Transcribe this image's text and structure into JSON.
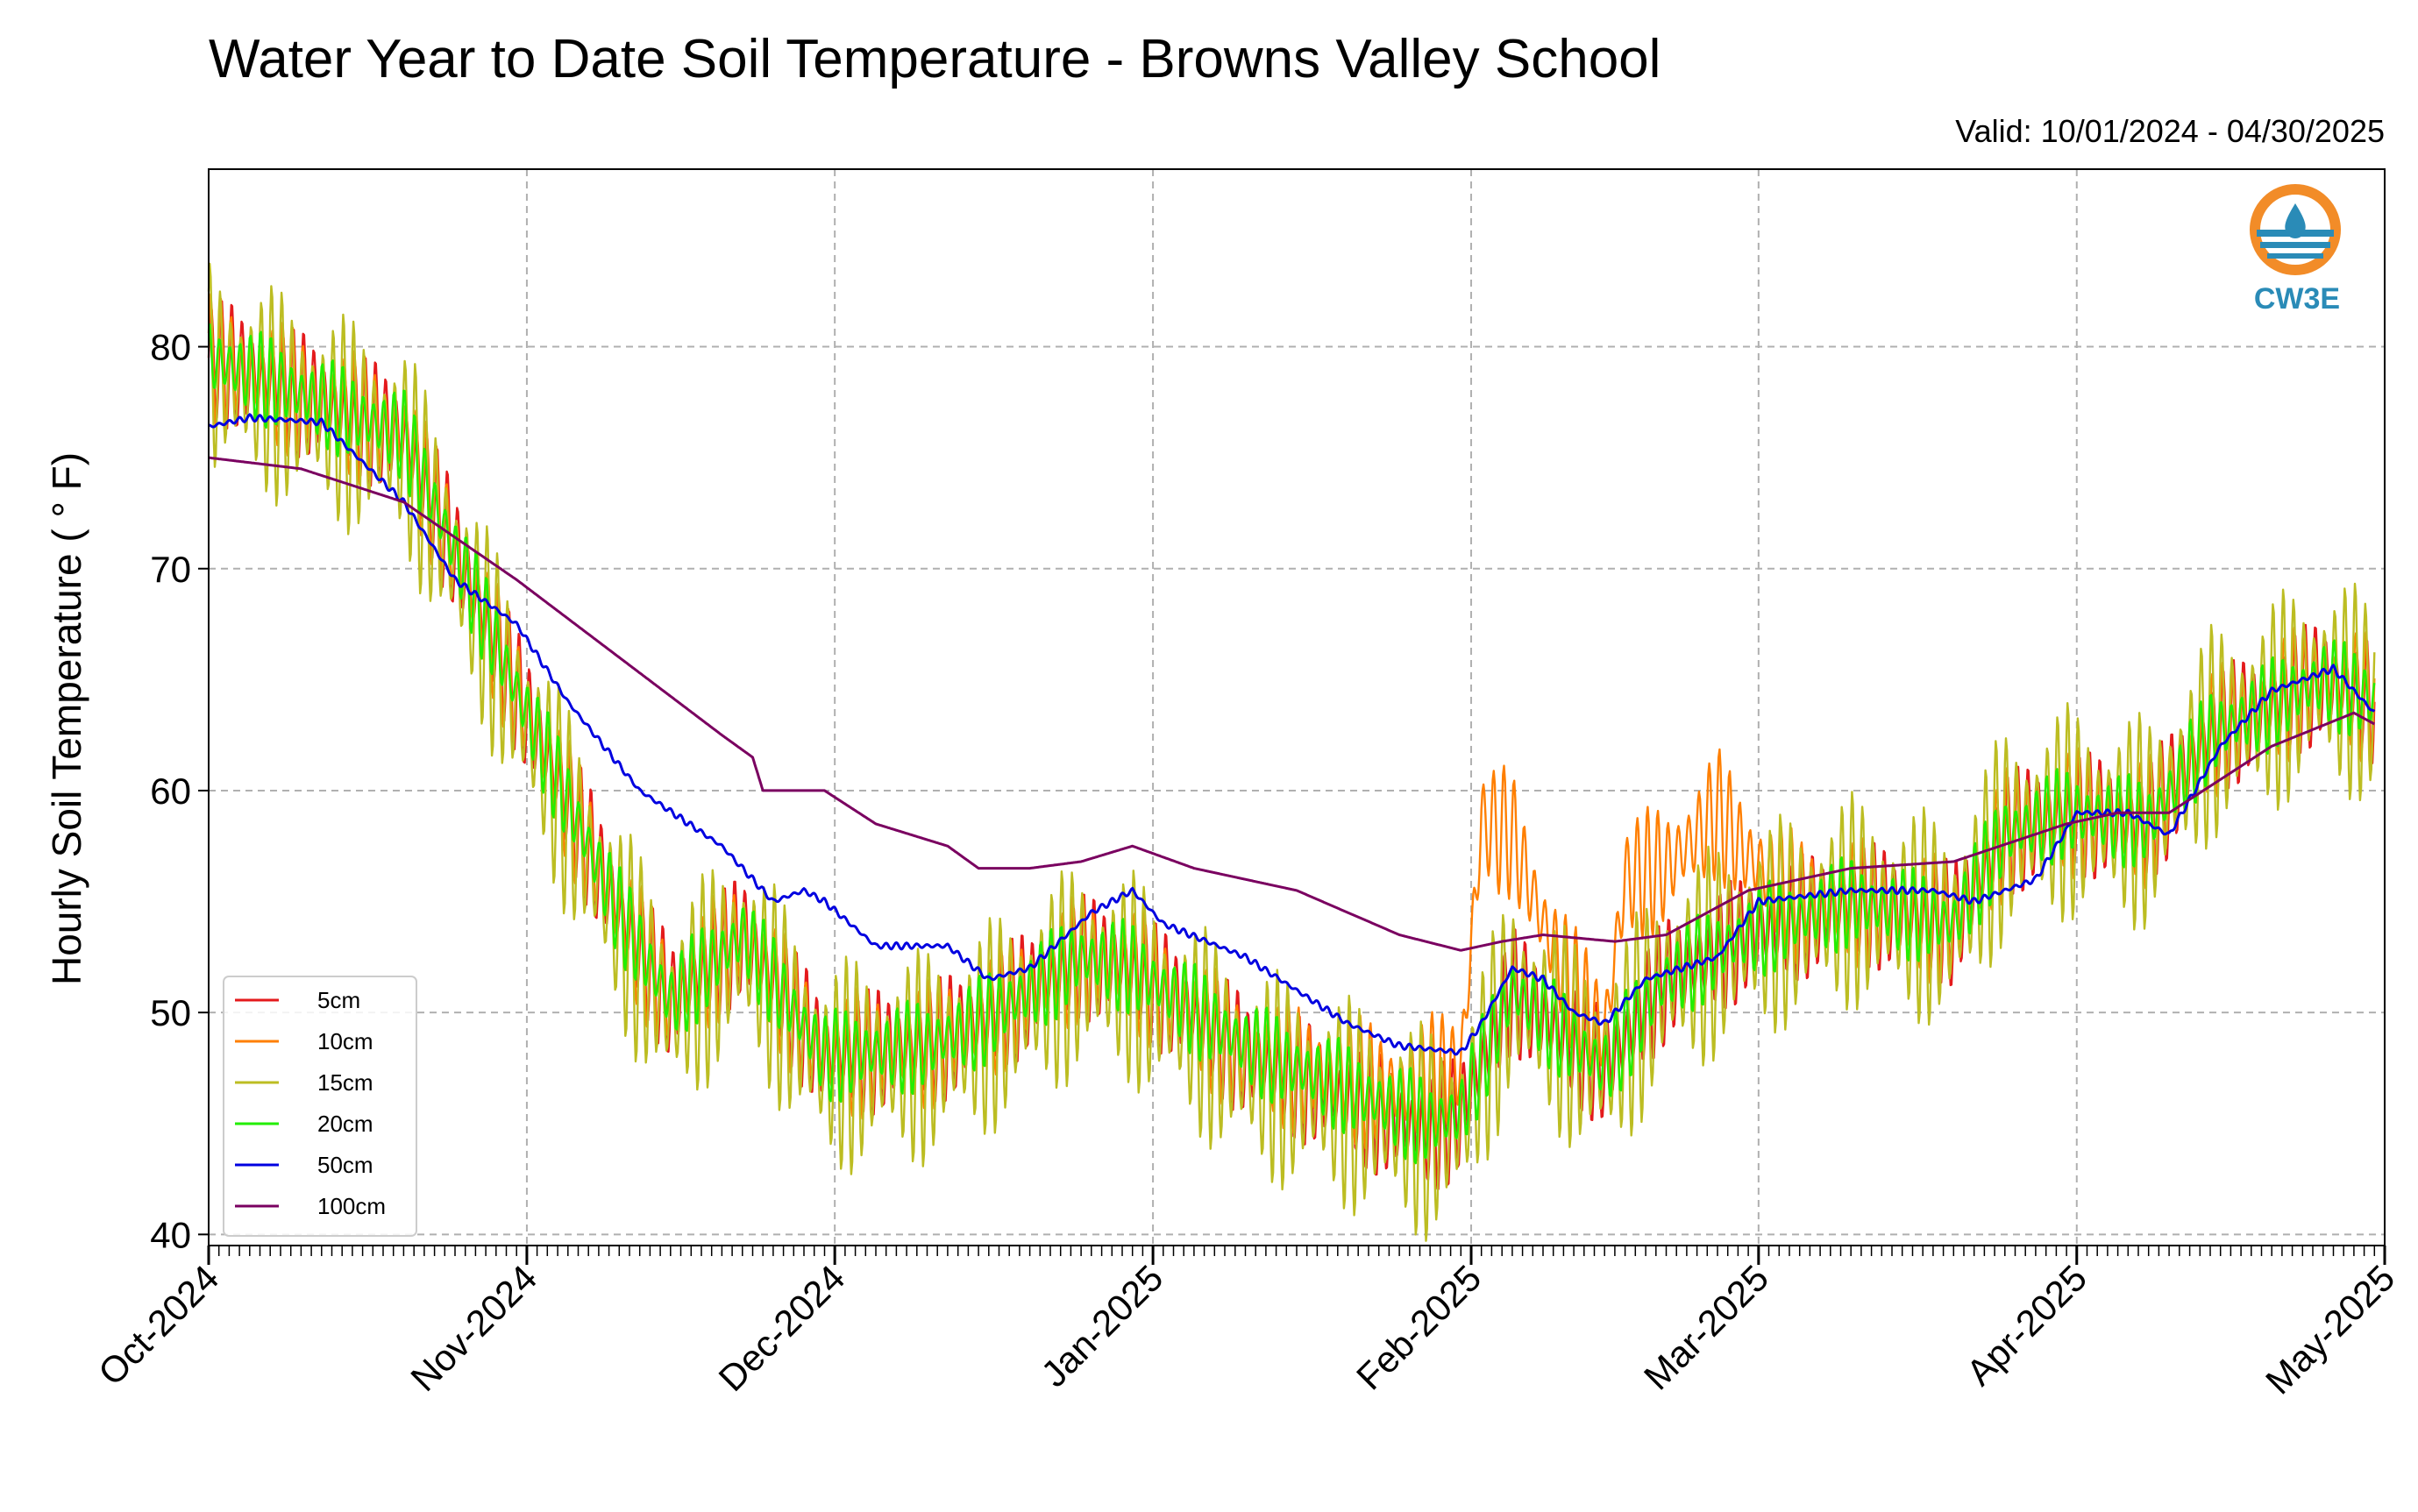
{
  "chart_data": {
    "type": "line",
    "title": "Water Year to Date Soil Temperature - Browns Valley School",
    "subtitle": "Valid: 10/01/2024 - 04/30/2025",
    "xlabel": "",
    "ylabel": "Hourly Soil Temperature ( ° F)",
    "x_tick_labels": [
      "Oct-2024",
      "Nov-2024",
      "Dec-2024",
      "Jan-2025",
      "Feb-2025",
      "Mar-2025",
      "Apr-2025",
      "May-2025"
    ],
    "x_range": [
      "2024-10-01",
      "2025-05-01"
    ],
    "y_ticks": [
      40,
      50,
      60,
      70,
      80
    ],
    "ylim": [
      39.5,
      88.0
    ],
    "grid": true,
    "legend_position": "lower-left",
    "logo_text": "CW3E",
    "colors": {
      "5cm": "#e41a1c",
      "10cm": "#ff7f00",
      "15cm": "#bcbd22",
      "20cm": "#22ee00",
      "50cm": "#0000e0",
      "100cm": "#7a0060",
      "grid": "#b0b0b0",
      "logo_orange": "#f28c28",
      "logo_blue": "#2a8bb7"
    },
    "series": [
      {
        "name": "5cm",
        "color": "#e41a1c",
        "diurnal": 3.0,
        "points": [
          [
            "2024-10-01",
            79.5
          ],
          [
            "2024-10-20",
            76.0
          ],
          [
            "2024-10-31",
            64.5
          ],
          [
            "2024-11-10",
            54.5
          ],
          [
            "2024-11-15",
            50.5
          ],
          [
            "2024-11-22",
            53.5
          ],
          [
            "2024-11-30",
            48.0
          ],
          [
            "2024-12-10",
            48.5
          ],
          [
            "2024-12-15",
            49.5
          ],
          [
            "2024-12-25",
            52.5
          ],
          [
            "2024-12-30",
            52.0
          ],
          [
            "2025-01-10",
            48.0
          ],
          [
            "2025-01-28",
            44.5
          ],
          [
            "2025-01-31",
            45.5
          ],
          [
            "2025-02-05",
            51.0
          ],
          [
            "2025-02-10",
            49.0
          ],
          [
            "2025-02-14",
            47.5
          ],
          [
            "2025-02-20",
            51.5
          ],
          [
            "2025-02-28",
            53.5
          ],
          [
            "2025-03-10",
            55.0
          ],
          [
            "2025-03-20",
            54.0
          ],
          [
            "2025-03-25",
            58.0
          ],
          [
            "2025-03-31",
            59.0
          ],
          [
            "2025-04-08",
            58.5
          ],
          [
            "2025-04-14",
            62.5
          ],
          [
            "2025-04-25",
            65.0
          ],
          [
            "2025-04-30",
            64.0
          ]
        ]
      },
      {
        "name": "10cm",
        "color": "#ff7f00",
        "diurnal": 3.0,
        "points": [
          [
            "2024-10-01",
            79.5
          ],
          [
            "2024-10-20",
            76.0
          ],
          [
            "2024-10-31",
            64.5
          ],
          [
            "2024-11-10",
            54.5
          ],
          [
            "2024-11-15",
            50.5
          ],
          [
            "2024-11-22",
            53.5
          ],
          [
            "2024-11-30",
            48.0
          ],
          [
            "2024-12-10",
            48.5
          ],
          [
            "2024-12-15",
            49.5
          ],
          [
            "2024-12-25",
            52.5
          ],
          [
            "2024-12-30",
            52.0
          ],
          [
            "2025-01-10",
            48.0
          ],
          [
            "2025-01-25",
            46.5
          ],
          [
            "2025-01-31",
            47.5
          ],
          [
            "2025-02-02",
            58.5
          ],
          [
            "2025-02-05",
            58.0
          ],
          [
            "2025-02-08",
            54.0
          ],
          [
            "2025-02-11",
            51.0
          ],
          [
            "2025-02-14",
            49.0
          ],
          [
            "2025-02-16",
            56.0
          ],
          [
            "2025-02-20",
            56.5
          ],
          [
            "2025-02-25",
            59.0
          ],
          [
            "2025-02-28",
            57.0
          ],
          [
            "2025-03-05",
            55.0
          ],
          [
            "2025-03-10",
            55.0
          ],
          [
            "2025-03-20",
            54.0
          ],
          [
            "2025-03-25",
            58.0
          ],
          [
            "2025-03-31",
            59.0
          ],
          [
            "2025-04-08",
            58.5
          ],
          [
            "2025-04-14",
            62.5
          ],
          [
            "2025-04-25",
            65.0
          ],
          [
            "2025-04-30",
            64.0
          ]
        ]
      },
      {
        "name": "15cm",
        "color": "#bcbd22",
        "diurnal": 5.0,
        "points": [
          [
            "2024-10-01",
            79.0
          ],
          [
            "2024-10-20",
            75.5
          ],
          [
            "2024-10-31",
            64.0
          ],
          [
            "2024-11-10",
            54.0
          ],
          [
            "2024-11-15",
            50.0
          ],
          [
            "2024-11-22",
            53.0
          ],
          [
            "2024-11-30",
            47.5
          ],
          [
            "2024-12-10",
            48.0
          ],
          [
            "2024-12-15",
            49.0
          ],
          [
            "2024-12-25",
            52.0
          ],
          [
            "2024-12-30",
            51.5
          ],
          [
            "2025-01-10",
            47.5
          ],
          [
            "2025-01-28",
            44.5
          ],
          [
            "2025-01-31",
            45.0
          ],
          [
            "2025-02-05",
            51.0
          ],
          [
            "2025-02-10",
            49.0
          ],
          [
            "2025-02-14",
            47.5
          ],
          [
            "2025-02-20",
            51.5
          ],
          [
            "2025-02-28",
            53.5
          ],
          [
            "2025-03-10",
            55.0
          ],
          [
            "2025-03-20",
            54.0
          ],
          [
            "2025-03-25",
            58.0
          ],
          [
            "2025-03-31",
            59.0
          ],
          [
            "2025-04-08",
            58.5
          ],
          [
            "2025-04-14",
            62.5
          ],
          [
            "2025-04-25",
            65.0
          ],
          [
            "2025-04-30",
            64.0
          ]
        ]
      },
      {
        "name": "20cm",
        "color": "#22ee00",
        "diurnal": 2.2,
        "points": [
          [
            "2024-10-01",
            79.5
          ],
          [
            "2024-10-20",
            76.0
          ],
          [
            "2024-10-31",
            64.5
          ],
          [
            "2024-11-10",
            54.5
          ],
          [
            "2024-11-15",
            50.5
          ],
          [
            "2024-11-22",
            53.5
          ],
          [
            "2024-11-30",
            48.0
          ],
          [
            "2024-12-10",
            48.5
          ],
          [
            "2024-12-15",
            49.5
          ],
          [
            "2024-12-25",
            52.5
          ],
          [
            "2024-12-30",
            52.0
          ],
          [
            "2025-01-10",
            48.5
          ],
          [
            "2025-01-28",
            45.0
          ],
          [
            "2025-01-31",
            45.5
          ],
          [
            "2025-02-05",
            51.0
          ],
          [
            "2025-02-10",
            49.0
          ],
          [
            "2025-02-14",
            47.5
          ],
          [
            "2025-02-20",
            51.5
          ],
          [
            "2025-02-28",
            53.5
          ],
          [
            "2025-03-10",
            55.0
          ],
          [
            "2025-03-20",
            54.0
          ],
          [
            "2025-03-25",
            58.0
          ],
          [
            "2025-03-31",
            59.0
          ],
          [
            "2025-04-08",
            58.5
          ],
          [
            "2025-04-14",
            62.5
          ],
          [
            "2025-04-25",
            65.0
          ],
          [
            "2025-04-30",
            64.0
          ]
        ]
      },
      {
        "name": "50cm",
        "color": "#0000e0",
        "diurnal": 0.15,
        "points": [
          [
            "2024-10-01",
            76.4
          ],
          [
            "2024-10-05",
            76.8
          ],
          [
            "2024-10-12",
            76.6
          ],
          [
            "2024-10-20",
            73.0
          ],
          [
            "2024-10-25",
            69.5
          ],
          [
            "2024-10-31",
            67.5
          ],
          [
            "2024-11-05",
            64.0
          ],
          [
            "2024-11-12",
            60.0
          ],
          [
            "2024-11-20",
            57.5
          ],
          [
            "2024-11-25",
            55.0
          ],
          [
            "2024-11-28",
            55.5
          ],
          [
            "2024-11-30",
            55.0
          ],
          [
            "2024-12-05",
            53.0
          ],
          [
            "2024-12-12",
            53.0
          ],
          [
            "2024-12-16",
            51.5
          ],
          [
            "2024-12-20",
            52.0
          ],
          [
            "2024-12-26",
            54.5
          ],
          [
            "2024-12-28",
            55.0
          ],
          [
            "2024-12-30",
            55.5
          ],
          [
            "2025-01-02",
            54.0
          ],
          [
            "2025-01-10",
            52.5
          ],
          [
            "2025-01-20",
            49.5
          ],
          [
            "2025-01-25",
            48.5
          ],
          [
            "2025-01-31",
            48.2
          ],
          [
            "2025-02-02",
            49.5
          ],
          [
            "2025-02-05",
            52.0
          ],
          [
            "2025-02-08",
            51.5
          ],
          [
            "2025-02-11",
            50.0
          ],
          [
            "2025-02-14",
            49.5
          ],
          [
            "2025-02-18",
            51.5
          ],
          [
            "2025-02-25",
            52.5
          ],
          [
            "2025-03-01",
            55.0
          ],
          [
            "2025-03-10",
            55.5
          ],
          [
            "2025-03-18",
            55.5
          ],
          [
            "2025-03-22",
            55.0
          ],
          [
            "2025-03-28",
            56.0
          ],
          [
            "2025-04-01",
            59.0
          ],
          [
            "2025-04-06",
            59.0
          ],
          [
            "2025-04-10",
            58.0
          ],
          [
            "2025-04-15",
            62.0
          ],
          [
            "2025-04-20",
            64.5
          ],
          [
            "2025-04-26",
            65.5
          ],
          [
            "2025-04-30",
            63.5
          ]
        ]
      },
      {
        "name": "100cm",
        "color": "#7a0060",
        "diurnal": 0.0,
        "points": [
          [
            "2024-10-01",
            75.0
          ],
          [
            "2024-10-10",
            74.5
          ],
          [
            "2024-10-20",
            73.0
          ],
          [
            "2024-10-31",
            69.5
          ],
          [
            "2024-11-10",
            66.0
          ],
          [
            "2024-11-20",
            62.5
          ],
          [
            "2024-11-23",
            61.5
          ],
          [
            "2024-11-24",
            60.0
          ],
          [
            "2024-11-30",
            60.0
          ],
          [
            "2024-12-05",
            58.5
          ],
          [
            "2024-12-12",
            57.5
          ],
          [
            "2024-12-15",
            56.5
          ],
          [
            "2024-12-20",
            56.5
          ],
          [
            "2024-12-25",
            56.8
          ],
          [
            "2024-12-30",
            57.5
          ],
          [
            "2025-01-05",
            56.5
          ],
          [
            "2025-01-15",
            55.5
          ],
          [
            "2025-01-25",
            53.5
          ],
          [
            "2025-01-31",
            52.8
          ],
          [
            "2025-02-04",
            53.2
          ],
          [
            "2025-02-08",
            53.5
          ],
          [
            "2025-02-15",
            53.2
          ],
          [
            "2025-02-20",
            53.5
          ],
          [
            "2025-02-28",
            55.5
          ],
          [
            "2025-03-10",
            56.5
          ],
          [
            "2025-03-20",
            56.8
          ],
          [
            "2025-03-31",
            58.5
          ],
          [
            "2025-04-05",
            59.0
          ],
          [
            "2025-04-10",
            59.0
          ],
          [
            "2025-04-15",
            60.5
          ],
          [
            "2025-04-20",
            62.0
          ],
          [
            "2025-04-28",
            63.5
          ],
          [
            "2025-04-30",
            63.0
          ]
        ]
      }
    ]
  }
}
